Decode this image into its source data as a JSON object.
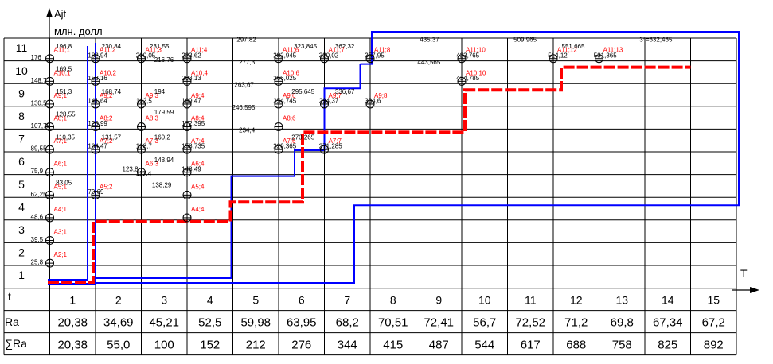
{
  "axes": {
    "y_title": "Ajt",
    "y_units": "млн. долл",
    "x_title": "T",
    "y_levels": [
      "1",
      "2",
      "3",
      "4",
      "5",
      "6",
      "7",
      "8",
      "9",
      "10",
      "11"
    ]
  },
  "table": {
    "t_label": "t",
    "ra_label": "Ra",
    "sum_label": "∑Ra",
    "t": [
      "1",
      "2",
      "3",
      "4",
      "5",
      "6",
      "7",
      "8",
      "9",
      "10",
      "11",
      "12",
      "13",
      "14",
      "15"
    ],
    "ra": [
      "20,38",
      "34,69",
      "45,21",
      "52,5",
      "59,98",
      "63,95",
      "68,2",
      "70,51",
      "72,41",
      "56,7",
      "72,52",
      "71,2",
      "69,8",
      "67,34",
      "67,2"
    ],
    "sum_ra": [
      "20,38",
      "55,0",
      "100",
      "152",
      "212",
      "276",
      "344",
      "415",
      "487",
      "544",
      "617",
      "688",
      "758",
      "825",
      "892"
    ]
  },
  "nodes": [
    {
      "id": "A2;1",
      "col": 1,
      "row": 2
    },
    {
      "id": "A3;1",
      "col": 1,
      "row": 3
    },
    {
      "id": "A4;1",
      "col": 1,
      "row": 4
    },
    {
      "id": "A5;1",
      "col": 1,
      "row": 5
    },
    {
      "id": "A6;1",
      "col": 1,
      "row": 6
    },
    {
      "id": "A7;1",
      "col": 1,
      "row": 7
    },
    {
      "id": "A8;1",
      "col": 1,
      "row": 8
    },
    {
      "id": "A9;1",
      "col": 1,
      "row": 9
    },
    {
      "id": "A10;1",
      "col": 1,
      "row": 10
    },
    {
      "id": "A11;1",
      "col": 1,
      "row": 11
    },
    {
      "id": "A5;2",
      "col": 2,
      "row": 5
    },
    {
      "id": "A7;2",
      "col": 2,
      "row": 7
    },
    {
      "id": "A8;2",
      "col": 2,
      "row": 8
    },
    {
      "id": "A9;2",
      "col": 2,
      "row": 9
    },
    {
      "id": "A10;2",
      "col": 2,
      "row": 10
    },
    {
      "id": "A11;2",
      "col": 2,
      "row": 11
    },
    {
      "id": "A6;3",
      "col": 3,
      "row": 6
    },
    {
      "id": "A7;3",
      "col": 3,
      "row": 7
    },
    {
      "id": "A8;3",
      "col": 3,
      "row": 8
    },
    {
      "id": "A9;3",
      "col": 3,
      "row": 9
    },
    {
      "id": "A11;3",
      "col": 3,
      "row": 11
    },
    {
      "id": "A4;4",
      "col": 4,
      "row": 4
    },
    {
      "id": "A5;4",
      "col": 4,
      "row": 5
    },
    {
      "id": "A6;4",
      "col": 4,
      "row": 6
    },
    {
      "id": "A7;4",
      "col": 4,
      "row": 7
    },
    {
      "id": "A8;4",
      "col": 4,
      "row": 8
    },
    {
      "id": "A9;4",
      "col": 4,
      "row": 9
    },
    {
      "id": "A10;4",
      "col": 4,
      "row": 10
    },
    {
      "id": "A11;4",
      "col": 4,
      "row": 11
    },
    {
      "id": "A7;6",
      "col": 6,
      "row": 7
    },
    {
      "id": "A8;6",
      "col": 6,
      "row": 8
    },
    {
      "id": "A9;6",
      "col": 6,
      "row": 9
    },
    {
      "id": "A10;6",
      "col": 6,
      "row": 10
    },
    {
      "id": "A11;6",
      "col": 6,
      "row": 11
    },
    {
      "id": "A7;7",
      "col": 7,
      "row": 7
    },
    {
      "id": "A9;7",
      "col": 7,
      "row": 9
    },
    {
      "id": "A11;7",
      "col": 7,
      "row": 11
    },
    {
      "id": "A9;8",
      "col": 8,
      "row": 9
    },
    {
      "id": "A11;8",
      "col": 8,
      "row": 11
    },
    {
      "id": "A10;10",
      "col": 10,
      "row": 10
    },
    {
      "id": "A11;10",
      "col": 10,
      "row": 11
    },
    {
      "id": "A11;12",
      "col": 12,
      "row": 11
    },
    {
      "id": "A11;13",
      "col": 13,
      "row": 11
    }
  ],
  "values": [
    {
      "t": "25,8",
      "col": 1,
      "row": 1.5
    },
    {
      "t": "39,5",
      "col": 1,
      "row": 2.5
    },
    {
      "t": "48,6",
      "col": 1,
      "row": 3.5
    },
    {
      "t": "62,25",
      "col": 1,
      "row": 4.5
    },
    {
      "t": "75,9",
      "col": 1,
      "row": 5.5
    },
    {
      "t": "89,55",
      "col": 1,
      "row": 6.5
    },
    {
      "t": "107,75",
      "col": 1,
      "row": 7.5
    },
    {
      "t": "130,5",
      "col": 1,
      "row": 8.5
    },
    {
      "t": "148,7",
      "col": 1,
      "row": 9.5
    },
    {
      "t": "176",
      "col": 1,
      "row": 10.5
    },
    {
      "t": "196,8",
      "col": 1.55,
      "row": 11
    },
    {
      "t": "169,5",
      "col": 1.55,
      "row": 10
    },
    {
      "t": "151,3",
      "col": 1.55,
      "row": 9
    },
    {
      "t": "128,55",
      "col": 1.55,
      "row": 8
    },
    {
      "t": "110,35",
      "col": 1.55,
      "row": 7
    },
    {
      "t": "83,05",
      "col": 1.55,
      "row": 5
    },
    {
      "t": "79,69",
      "col": 2.25,
      "row": 4.6
    },
    {
      "t": "104,47",
      "col": 2.25,
      "row": 6.6
    },
    {
      "t": "120,99",
      "col": 2.25,
      "row": 7.6
    },
    {
      "t": "141,64",
      "col": 2.25,
      "row": 8.6
    },
    {
      "t": "158,16",
      "col": 2.25,
      "row": 9.6
    },
    {
      "t": "182,94",
      "col": 2.25,
      "row": 10.6
    },
    {
      "t": "230,84",
      "col": 2.55,
      "row": 11
    },
    {
      "t": "168,74",
      "col": 2.55,
      "row": 9
    },
    {
      "t": "131,57",
      "col": 2.55,
      "row": 7
    },
    {
      "t": "123,8",
      "col": 3.0,
      "row": 5.6
    },
    {
      "t": "117,4",
      "col": 3.3,
      "row": 5.4
    },
    {
      "t": "128,7",
      "col": 3.3,
      "row": 6.6
    },
    {
      "t": "162,5",
      "col": 3.3,
      "row": 8.6
    },
    {
      "t": "200,05",
      "col": 3.3,
      "row": 10.6
    },
    {
      "t": "231,55",
      "col": 3.6,
      "row": 11
    },
    {
      "t": "216,76",
      "col": 3.7,
      "row": 10.4
    },
    {
      "t": "194",
      "col": 3.7,
      "row": 9
    },
    {
      "t": "179,59",
      "col": 3.7,
      "row": 8.1
    },
    {
      "t": "160,2",
      "col": 3.7,
      "row": 7
    },
    {
      "t": "148,94",
      "col": 3.7,
      "row": 6
    },
    {
      "t": "138,29",
      "col": 3.65,
      "row": 4.9
    },
    {
      "t": "223,62",
      "col": 4.3,
      "row": 10.6
    },
    {
      "t": "203,13",
      "col": 4.3,
      "row": 9.6
    },
    {
      "t": "189,47",
      "col": 4.3,
      "row": 8.6
    },
    {
      "t": "172,395",
      "col": 4.3,
      "row": 7.6
    },
    {
      "t": "158,735",
      "col": 4.3,
      "row": 6.6
    },
    {
      "t": "148,49",
      "col": 4.3,
      "row": 5.6
    },
    {
      "t": "297,82",
      "col": 5.5,
      "row": 11.3
    },
    {
      "t": "277,3",
      "col": 5.55,
      "row": 10.3
    },
    {
      "t": "263,67",
      "col": 5.45,
      "row": 9.3
    },
    {
      "t": "246,595",
      "col": 5.4,
      "row": 8.3
    },
    {
      "t": "234,4",
      "col": 5.55,
      "row": 7.3
    },
    {
      "t": "282,945",
      "col": 6.3,
      "row": 10.6
    },
    {
      "t": "266,025",
      "col": 6.3,
      "row": 9.6
    },
    {
      "t": "254,745",
      "col": 6.3,
      "row": 8.6
    },
    {
      "t": "229,365",
      "col": 6.3,
      "row": 6.6
    },
    {
      "t": "323,845",
      "col": 6.75,
      "row": 11
    },
    {
      "t": "295,645",
      "col": 6.7,
      "row": 9
    },
    {
      "t": "270,265",
      "col": 6.7,
      "row": 7
    },
    {
      "t": "320,02",
      "col": 7.3,
      "row": 10.6
    },
    {
      "t": "294,37",
      "col": 7.3,
      "row": 8.6
    },
    {
      "t": "271,285",
      "col": 7.3,
      "row": 6.6
    },
    {
      "t": "362,32",
      "col": 7.65,
      "row": 11
    },
    {
      "t": "336,67",
      "col": 7.65,
      "row": 9
    },
    {
      "t": "357,95",
      "col": 8.3,
      "row": 10.6
    },
    {
      "t": "334,6",
      "col": 8.3,
      "row": 8.6
    },
    {
      "t": "435,37",
      "col": 9.5,
      "row": 11.3
    },
    {
      "t": "443,565",
      "col": 9.45,
      "row": 10.3
    },
    {
      "t": "423,765",
      "col": 10.3,
      "row": 10.6
    },
    {
      "t": "414,785",
      "col": 10.3,
      "row": 9.6
    },
    {
      "t": "509,965",
      "col": 11.55,
      "row": 11.3
    },
    {
      "t": "514,12",
      "col": 12.3,
      "row": 10.6
    },
    {
      "t": "551,665",
      "col": 12.6,
      "row": 11
    },
    {
      "t": "531,365",
      "col": 13.3,
      "row": 10.6
    },
    {
      "t": "3*=632,465",
      "col": 14.3,
      "row": 11.3
    }
  ],
  "colors": {
    "grid": "#000000",
    "optimal_path": "#ff0000",
    "boundary": "#0000ff",
    "node_label": "#ff0000"
  }
}
